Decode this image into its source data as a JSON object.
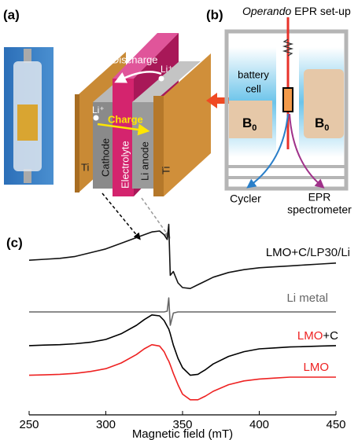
{
  "panel_a": {
    "label": "(a)",
    "discharge": "Discharge",
    "charge": "Charge",
    "ion": "Li⁺",
    "current_collector": "Ti",
    "cathode": "Cathode",
    "electrolyte": "Electrolyte",
    "anode": "Li anode"
  },
  "panel_b": {
    "label": "(b)",
    "title_italic": "Operando",
    "title": " EPR set-up",
    "battery_cell": [
      "battery",
      "cell"
    ],
    "field": "B",
    "field_subscript": "0",
    "cycler": "Cycler",
    "spectrometer": [
      "EPR",
      "spectrometer"
    ]
  },
  "chart_data": {
    "type": "line",
    "label": "(c)",
    "xlabel": "Magnetic field (mT)",
    "x": [
      250,
      260,
      270,
      280,
      290,
      300,
      310,
      320,
      325,
      330,
      335,
      338,
      340,
      341,
      342,
      344,
      347,
      350,
      355,
      360,
      365,
      370,
      380,
      390,
      400,
      410,
      420,
      430,
      440,
      450
    ],
    "xlim": [
      250,
      450
    ],
    "xticks": [
      250,
      300,
      350,
      400,
      450
    ],
    "ylim": [
      0,
      10
    ],
    "series": [
      {
        "name": "LMO+C/LP30/Li",
        "color": "#111111",
        "values": [
          8.2,
          8.25,
          8.3,
          8.4,
          8.6,
          8.8,
          9.1,
          9.4,
          9.55,
          9.7,
          9.75,
          9.55,
          9.3,
          10.1,
          7.4,
          7.6,
          7.0,
          6.75,
          6.7,
          6.9,
          7.1,
          7.3,
          7.55,
          7.7,
          7.8,
          7.85,
          7.9,
          7.95,
          8.0,
          8.05
        ]
      },
      {
        "name": "Li metal",
        "color": "#666666",
        "values": [
          5.46,
          5.46,
          5.46,
          5.46,
          5.46,
          5.46,
          5.46,
          5.46,
          5.46,
          5.46,
          5.46,
          5.46,
          5.5,
          6.2,
          4.75,
          5.4,
          5.46,
          5.46,
          5.46,
          5.46,
          5.46,
          5.46,
          5.46,
          5.46,
          5.46,
          5.46,
          5.46,
          5.46,
          5.46,
          5.46
        ]
      },
      {
        "name": "LMO+C",
        "color": "#000000",
        "values": [
          3.67,
          3.7,
          3.72,
          3.77,
          3.85,
          4.0,
          4.3,
          4.75,
          5.05,
          5.3,
          5.25,
          5.0,
          4.7,
          4.55,
          4.3,
          3.7,
          3.0,
          2.5,
          2.1,
          2.15,
          2.4,
          2.7,
          3.1,
          3.35,
          3.5,
          3.55,
          3.6,
          3.62,
          3.65,
          3.67
        ]
      },
      {
        "name": "LMO",
        "color": "#ee2222",
        "values": [
          2.1,
          2.12,
          2.15,
          2.2,
          2.3,
          2.45,
          2.75,
          3.2,
          3.5,
          3.72,
          3.65,
          3.35,
          3.0,
          2.85,
          2.65,
          2.2,
          1.6,
          1.1,
          0.8,
          0.8,
          1.0,
          1.25,
          1.6,
          1.8,
          1.9,
          1.95,
          2.0,
          2.0,
          2.0,
          2.0
        ]
      }
    ]
  }
}
